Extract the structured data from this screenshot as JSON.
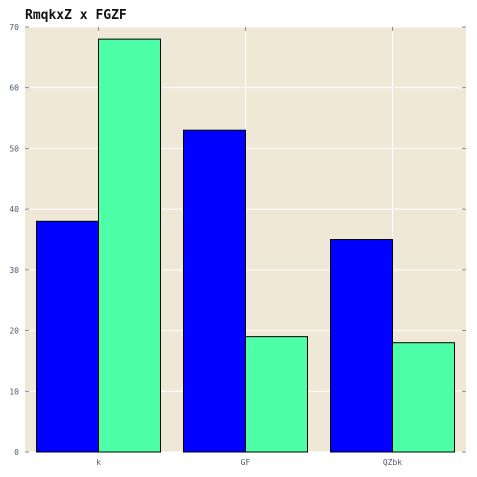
{
  "colors": {
    "background": "#ffffff",
    "plot_background": "#efe8d6",
    "grid": "#ffffff",
    "bar_edge": "#000000",
    "series": [
      "#0000ff",
      "#4dffa6"
    ]
  },
  "chart_data": {
    "type": "bar",
    "title": "RmqkxZ x FGZF",
    "xlabel": "",
    "ylabel": "",
    "categories": [
      "k",
      "GF",
      "QZbk"
    ],
    "series": [
      {
        "values": [
          38,
          53,
          35
        ]
      },
      {
        "values": [
          68,
          19,
          18
        ]
      }
    ],
    "ylim": [
      0,
      70
    ],
    "yticks": [
      0,
      10,
      20,
      30,
      40,
      50,
      60,
      70
    ],
    "ytick_labels": [
      "0",
      "10",
      "20",
      "30",
      "40",
      "50",
      "60",
      "70"
    ],
    "grid": true,
    "legend": "none"
  }
}
